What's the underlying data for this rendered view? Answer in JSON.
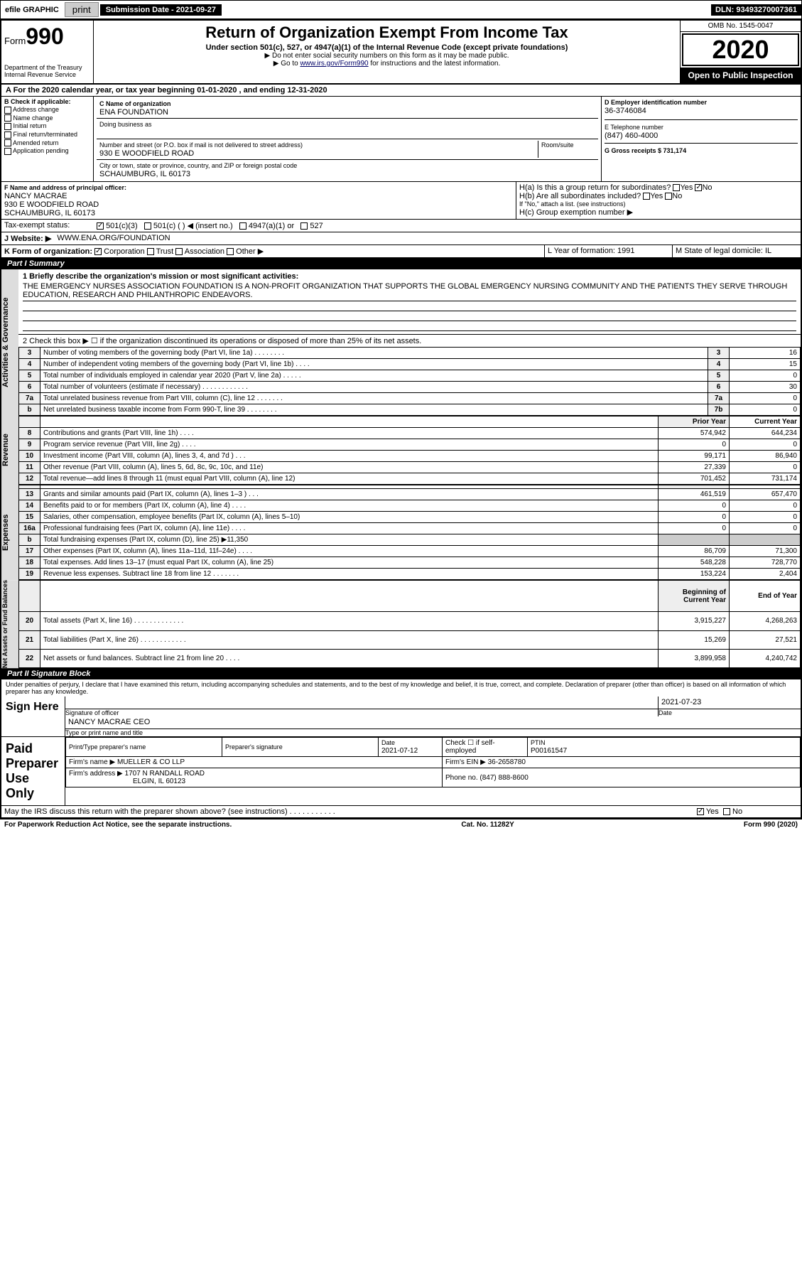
{
  "top": {
    "efile": "efile GRAPHIC",
    "print": "print",
    "subdate_label": "Submission Date - 2021-09-27",
    "dln": "DLN: 93493270007361"
  },
  "header": {
    "form_prefix": "Form",
    "form_num": "990",
    "dept": "Department of the Treasury",
    "irs": "Internal Revenue Service",
    "title": "Return of Organization Exempt From Income Tax",
    "sub1": "Under section 501(c), 527, or 4947(a)(1) of the Internal Revenue Code (except private foundations)",
    "sub2": "▶ Do not enter social security numbers on this form as it may be made public.",
    "sub3_pre": "▶ Go to ",
    "sub3_link": "www.irs.gov/Form990",
    "sub3_post": " for instructions and the latest information.",
    "omb": "OMB No. 1545-0047",
    "year": "2020",
    "inspect": "Open to Public Inspection"
  },
  "period": "A For the 2020 calendar year, or tax year beginning 01-01-2020    , and ending 12-31-2020",
  "boxB": {
    "label": "B Check if applicable:",
    "opts": [
      "Address change",
      "Name change",
      "Initial return",
      "Final return/terminated",
      "Amended return",
      "Application pending"
    ]
  },
  "boxC": {
    "name_label": "C Name of organization",
    "name": "ENA FOUNDATION",
    "dba_label": "Doing business as",
    "addr_label": "Number and street (or P.O. box if mail is not delivered to street address)",
    "room_label": "Room/suite",
    "addr": "930 E WOODFIELD ROAD",
    "city_label": "City or town, state or province, country, and ZIP or foreign postal code",
    "city": "SCHAUMBURG, IL  60173"
  },
  "boxD": {
    "label": "D Employer identification number",
    "val": "36-3746084"
  },
  "boxE": {
    "label": "E Telephone number",
    "val": "(847) 460-4000"
  },
  "boxG": {
    "label": "G Gross receipts $ 731,174"
  },
  "boxF": {
    "label": "F  Name and address of principal officer:",
    "name": "NANCY MACRAE",
    "addr": "930 E WOODFIELD ROAD",
    "city": "SCHAUMBURG, IL  60173"
  },
  "boxH": {
    "a": "H(a)  Is this a group return for subordinates?",
    "b": "H(b)  Are all subordinates included?",
    "note": "If \"No,\" attach a list. (see instructions)",
    "c": "H(c)  Group exemption number ▶",
    "yes": "Yes",
    "no": "No"
  },
  "tax_status": {
    "label": "Tax-exempt status:",
    "o1": "501(c)(3)",
    "o2": "501(c) (   ) ◀ (insert no.)",
    "o3": "4947(a)(1) or",
    "o4": "527"
  },
  "boxJ": {
    "label": "J   Website: ▶",
    "val": "WWW.ENA.ORG/FOUNDATION"
  },
  "boxK": {
    "label": "K Form of organization:",
    "corp": "Corporation",
    "trust": "Trust",
    "assoc": "Association",
    "other": "Other ▶"
  },
  "boxL": {
    "label": "L Year of formation: 1991"
  },
  "boxM": {
    "label": "M State of legal domicile: IL"
  },
  "part1": {
    "title": "Part I      Summary",
    "l1_label": "1  Briefly describe the organization's mission or most significant activities:",
    "l1_text": "THE EMERGENCY NURSES ASSOCIATION FOUNDATION IS A NON-PROFIT ORGANIZATION THAT SUPPORTS THE GLOBAL EMERGENCY NURSING COMMUNITY AND THE PATIENTS THEY SERVE THROUGH EDUCATION, RESEARCH AND PHILANTHROPIC ENDEAVORS.",
    "l2": "2   Check this box ▶ ☐  if the organization discontinued its operations or disposed of more than 25% of its net assets.",
    "rows_ag": [
      {
        "n": "3",
        "label": "Number of voting members of the governing body (Part VI, line 1a)   .   .   .   .   .   .   .   .",
        "box": "3",
        "val": "16"
      },
      {
        "n": "4",
        "label": "Number of independent voting members of the governing body (Part VI, line 1b)   .   .   .   .",
        "box": "4",
        "val": "15"
      },
      {
        "n": "5",
        "label": "Total number of individuals employed in calendar year 2020 (Part V, line 2a)   .   .   .   .   .",
        "box": "5",
        "val": "0"
      },
      {
        "n": "6",
        "label": "Total number of volunteers (estimate if necessary)   .   .   .   .   .   .   .   .   .   .   .   .",
        "box": "6",
        "val": "30"
      },
      {
        "n": "7a",
        "label": "Total unrelated business revenue from Part VIII, column (C), line 12   .   .   .   .   .   .   .",
        "box": "7a",
        "val": "0"
      },
      {
        "n": "b",
        "label": "Net unrelated business taxable income from Form 990-T, line 39   .   .   .   .   .   .   .   .",
        "box": "7b",
        "val": "0"
      }
    ],
    "prior": "Prior Year",
    "current": "Current Year",
    "rev": [
      {
        "n": "8",
        "label": "Contributions and grants (Part VIII, line 1h)   .   .   .   .",
        "p": "574,942",
        "c": "644,234"
      },
      {
        "n": "9",
        "label": "Program service revenue (Part VIII, line 2g)   .   .   .   .",
        "p": "0",
        "c": "0"
      },
      {
        "n": "10",
        "label": "Investment income (Part VIII, column (A), lines 3, 4, and 7d )   .   .   .",
        "p": "99,171",
        "c": "86,940"
      },
      {
        "n": "11",
        "label": "Other revenue (Part VIII, column (A), lines 5, 6d, 8c, 9c, 10c, and 11e)",
        "p": "27,339",
        "c": "0"
      },
      {
        "n": "12",
        "label": "Total revenue—add lines 8 through 11 (must equal Part VIII, column (A), line 12)",
        "p": "701,452",
        "c": "731,174"
      }
    ],
    "exp": [
      {
        "n": "13",
        "label": "Grants and similar amounts paid (Part IX, column (A), lines 1–3 )   .   .   .",
        "p": "461,519",
        "c": "657,470"
      },
      {
        "n": "14",
        "label": "Benefits paid to or for members (Part IX, column (A), line 4)   .   .   .   .",
        "p": "0",
        "c": "0"
      },
      {
        "n": "15",
        "label": "Salaries, other compensation, employee benefits (Part IX, column (A), lines 5–10)",
        "p": "0",
        "c": "0"
      },
      {
        "n": "16a",
        "label": "Professional fundraising fees (Part IX, column (A), line 11e)   .   .   .   .",
        "p": "0",
        "c": "0"
      },
      {
        "n": "b",
        "label": "Total fundraising expenses (Part IX, column (D), line 25) ▶11,350",
        "p": "",
        "c": "",
        "shaded": true
      },
      {
        "n": "17",
        "label": "Other expenses (Part IX, column (A), lines 11a–11d, 11f–24e)   .   .   .   .",
        "p": "86,709",
        "c": "71,300"
      },
      {
        "n": "18",
        "label": "Total expenses. Add lines 13–17 (must equal Part IX, column (A), line 25)",
        "p": "548,228",
        "c": "728,770"
      },
      {
        "n": "19",
        "label": "Revenue less expenses. Subtract line 18 from line 12   .   .   .   .   .   .   .",
        "p": "153,224",
        "c": "2,404"
      }
    ],
    "beg": "Beginning of Current Year",
    "end": "End of Year",
    "na": [
      {
        "n": "20",
        "label": "Total assets (Part X, line 16)   .   .   .   .   .   .   .   .   .   .   .   .   .",
        "p": "3,915,227",
        "c": "4,268,263"
      },
      {
        "n": "21",
        "label": "Total liabilities (Part X, line 26)   .   .   .   .   .   .   .   .   .   .   .   .",
        "p": "15,269",
        "c": "27,521"
      },
      {
        "n": "22",
        "label": "Net assets or fund balances. Subtract line 21 from line 20   .   .   .   .",
        "p": "3,899,958",
        "c": "4,240,742"
      }
    ],
    "vert_ag": "Activities & Governance",
    "vert_rev": "Revenue",
    "vert_exp": "Expenses",
    "vert_na": "Net Assets or Fund Balances"
  },
  "part2": {
    "title": "Part II      Signature Block",
    "decl": "Under penalties of perjury, I declare that I have examined this return, including accompanying schedules and statements, and to the best of my knowledge and belief, it is true, correct, and complete. Declaration of preparer (other than officer) is based on all information of which preparer has any knowledge.",
    "sign_here": "Sign Here",
    "sig_officer": "Signature of officer",
    "date": "Date",
    "sig_date": "2021-07-23",
    "name_title": "NANCY MACRAE CEO",
    "name_title_label": "Type or print name and title",
    "paid": "Paid Preparer Use Only",
    "prep_name_label": "Print/Type preparer's name",
    "prep_sig_label": "Preparer's signature",
    "prep_date": "2021-07-12",
    "self_emp": "Check ☐ if self-employed",
    "ptin_label": "PTIN",
    "ptin": "P00161547",
    "firm_name_label": "Firm's name    ▶",
    "firm_name": "MUELLER & CO LLP",
    "firm_ein_label": "Firm's EIN ▶",
    "firm_ein": "36-2658780",
    "firm_addr_label": "Firm's address ▶",
    "firm_addr": "1707 N RANDALL ROAD",
    "firm_city": "ELGIN, IL  60123",
    "phone_label": "Phone no.",
    "phone": "(847) 888-8600",
    "may_irs": "May the IRS discuss this return with the preparer shown above? (see instructions)   .   .   .   .   .   .   .   .   .   .   .",
    "yes": "Yes",
    "no": "No"
  },
  "footer": {
    "left": "For Paperwork Reduction Act Notice, see the separate instructions.",
    "mid": "Cat. No. 11282Y",
    "right": "Form 990 (2020)"
  },
  "colors": {
    "black": "#000000",
    "link": "#000066",
    "shade": "#dddddd"
  }
}
